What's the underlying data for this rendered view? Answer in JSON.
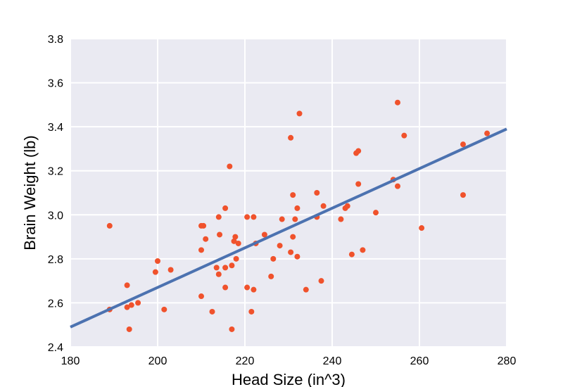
{
  "colors": {
    "plot_background": "#EAEAF2",
    "grid": "#FFFFFF",
    "points": "#F0522C",
    "regression_line": "#4C72B0"
  },
  "chart_data": {
    "type": "scatter",
    "title": "",
    "xlabel": "Head Size (in^3)",
    "ylabel": "Brain Weight (lb)",
    "xlim": [
      180,
      280
    ],
    "ylim": [
      2.4,
      3.8
    ],
    "grid": true,
    "legend": "none",
    "x_ticks": [
      "180",
      "200",
      "220",
      "240",
      "260",
      "280"
    ],
    "y_ticks": [
      "2.4",
      "2.6",
      "2.8",
      "3.0",
      "3.2",
      "3.4",
      "3.6",
      "3.8"
    ],
    "series": [
      {
        "type": "scatter",
        "points": [
          [
            189,
            2.95
          ],
          [
            189,
            2.57
          ],
          [
            193,
            2.68
          ],
          [
            193,
            2.58
          ],
          [
            193.5,
            2.48
          ],
          [
            194,
            2.59
          ],
          [
            195.5,
            2.6
          ],
          [
            199.5,
            2.74
          ],
          [
            200,
            2.79
          ],
          [
            201.5,
            2.57
          ],
          [
            203,
            2.75
          ],
          [
            210,
            2.95
          ],
          [
            210.5,
            2.95
          ],
          [
            210,
            2.84
          ],
          [
            210,
            2.63
          ],
          [
            211,
            2.89
          ],
          [
            212.5,
            2.56
          ],
          [
            213.5,
            2.76
          ],
          [
            214,
            2.73
          ],
          [
            214,
            2.99
          ],
          [
            214.2,
            2.91
          ],
          [
            215.5,
            3.03
          ],
          [
            215.5,
            2.76
          ],
          [
            215.5,
            2.67
          ],
          [
            216.5,
            3.22
          ],
          [
            217,
            2.77
          ],
          [
            217,
            2.48
          ],
          [
            217.5,
            2.88
          ],
          [
            217.8,
            2.9
          ],
          [
            218,
            2.8
          ],
          [
            218.5,
            2.87
          ],
          [
            220.5,
            2.99
          ],
          [
            220.5,
            2.67
          ],
          [
            221.5,
            2.56
          ],
          [
            222,
            2.99
          ],
          [
            222,
            2.66
          ],
          [
            222.5,
            2.87
          ],
          [
            224.5,
            2.91
          ],
          [
            226,
            2.72
          ],
          [
            226.5,
            2.8
          ],
          [
            228,
            2.86
          ],
          [
            228.5,
            2.98
          ],
          [
            230.5,
            3.35
          ],
          [
            230.5,
            2.83
          ],
          [
            231,
            3.09
          ],
          [
            231,
            2.9
          ],
          [
            231.5,
            2.98
          ],
          [
            232,
            3.03
          ],
          [
            232,
            2.81
          ],
          [
            232.5,
            3.46
          ],
          [
            234,
            2.66
          ],
          [
            236.5,
            3.1
          ],
          [
            236.5,
            2.99
          ],
          [
            237.5,
            2.7
          ],
          [
            238,
            3.04
          ],
          [
            242,
            2.98
          ],
          [
            243,
            3.03
          ],
          [
            243.5,
            3.04
          ],
          [
            244.5,
            2.82
          ],
          [
            245.5,
            3.28
          ],
          [
            246,
            3.29
          ],
          [
            246,
            3.14
          ],
          [
            247,
            2.84
          ],
          [
            250,
            3.01
          ],
          [
            254,
            3.16
          ],
          [
            255,
            3.51
          ],
          [
            255,
            3.13
          ],
          [
            256.5,
            3.36
          ],
          [
            260.5,
            2.94
          ],
          [
            270,
            3.32
          ],
          [
            270,
            3.09
          ],
          [
            275.5,
            3.37
          ]
        ]
      },
      {
        "type": "line",
        "points": [
          [
            180,
            2.49
          ],
          [
            280,
            3.39
          ]
        ]
      }
    ]
  }
}
